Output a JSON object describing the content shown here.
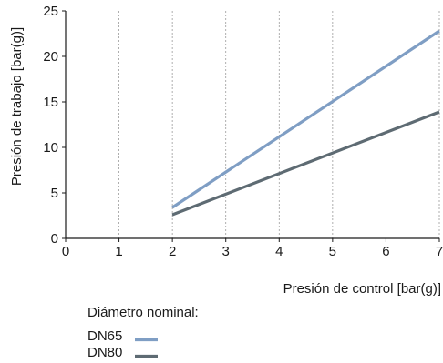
{
  "chart_data": {
    "type": "line",
    "xlabel": "Presión de control [bar(g)]",
    "ylabel": "Presión de trabajo [bar(g)]",
    "xlim": [
      0,
      7
    ],
    "ylim": [
      0,
      25
    ],
    "xticks": [
      "0",
      "1",
      "2",
      "3",
      "4",
      "5",
      "6",
      "7"
    ],
    "yticks": [
      "0",
      "5",
      "10",
      "15",
      "20",
      "25"
    ],
    "grid": "vertical",
    "legend": {
      "title": "Diámetro nominal:",
      "placement": "bottom-left"
    },
    "series": [
      {
        "name": "DN65",
        "color": "#7f9ec4",
        "x": [
          2,
          7
        ],
        "y": [
          3.4,
          22.8
        ]
      },
      {
        "name": "DN80",
        "color": "#5e6b73",
        "x": [
          2,
          7
        ],
        "y": [
          2.6,
          13.9
        ]
      }
    ]
  }
}
